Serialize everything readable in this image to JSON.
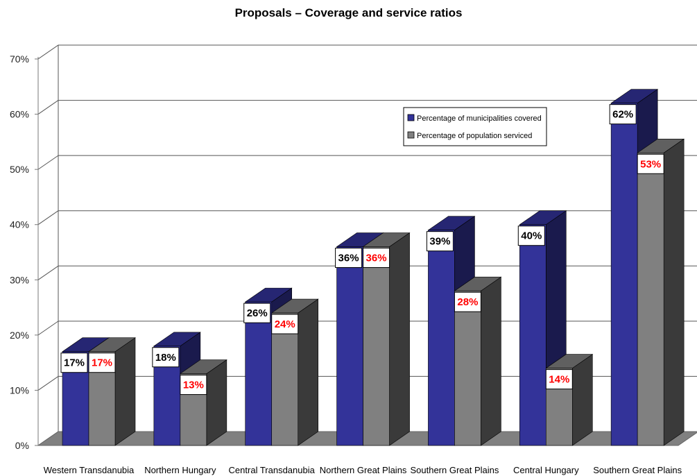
{
  "chart_data": {
    "type": "bar",
    "title": "Proposals – Coverage and service ratios",
    "xlabel": "",
    "ylabel": "",
    "categories": [
      "Western Transdanubia",
      "Northern Hungary",
      "Central Transdanubia",
      "Northern Great Plains",
      "Southern Great Plains",
      "Central Hungary",
      "Southern Great Plains"
    ],
    "series": [
      {
        "name": "Percentage of municipalities covered",
        "color": "#333399",
        "label_color": "#000000",
        "values": [
          17,
          18,
          26,
          36,
          39,
          40,
          62
        ],
        "labels": [
          "17%",
          "18%",
          "26%",
          "36%",
          "39%",
          "40%",
          "62%"
        ]
      },
      {
        "name": "Percentage of population serviced",
        "color": "#808080",
        "label_color": "#ff0000",
        "values": [
          17,
          13,
          24,
          36,
          28,
          14,
          53
        ],
        "labels": [
          "17%",
          "13%",
          "24%",
          "36%",
          "28%",
          "14%",
          "53%"
        ]
      }
    ],
    "ylim": [
      0,
      70
    ],
    "yticks": [
      "0%",
      "10%",
      "20%",
      "30%",
      "40%",
      "50%",
      "60%",
      "70%"
    ],
    "legend_position": "upper-right inside plot",
    "grid": true,
    "style": "3d"
  }
}
